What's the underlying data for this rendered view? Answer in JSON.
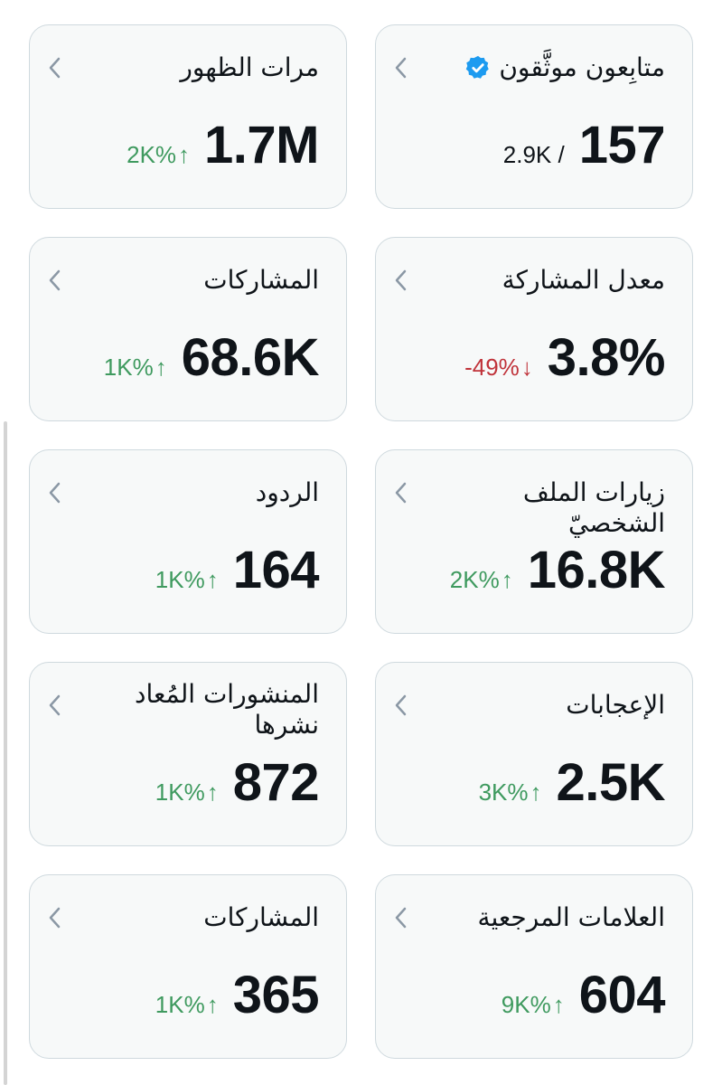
{
  "cards": [
    {
      "title": "متابِعون موثَّقون",
      "value": "157",
      "sub": "2.9K /",
      "verified": true
    },
    {
      "title": "مرات الظهور",
      "value": "1.7M",
      "delta": "2K%",
      "dir": "up"
    },
    {
      "title": "معدل المشاركة",
      "value": "3.8%",
      "delta": "-49%",
      "dir": "down"
    },
    {
      "title": "المشاركات",
      "value": "68.6K",
      "delta": "1K%",
      "dir": "up"
    },
    {
      "title": "زيارات الملف الشخصيّ",
      "value": "16.8K",
      "delta": "2K%",
      "dir": "up"
    },
    {
      "title": "الردود",
      "value": "164",
      "delta": "1K%",
      "dir": "up"
    },
    {
      "title": "الإعجابات",
      "value": "2.5K",
      "delta": "3K%",
      "dir": "up"
    },
    {
      "title": "المنشورات المُعاد نشرها",
      "value": "872",
      "delta": "1K%",
      "dir": "up"
    },
    {
      "title": "العلامات المرجعية",
      "value": "604",
      "delta": "9K%",
      "dir": "up"
    },
    {
      "title": "المشاركات",
      "value": "365",
      "delta": "1K%",
      "dir": "up"
    }
  ],
  "colors": {
    "up": "#3f9a5f",
    "down": "#c0333a",
    "accent": "#1d9bf0"
  }
}
